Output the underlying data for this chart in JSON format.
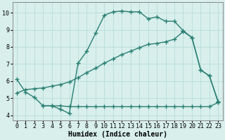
{
  "line1_x": [
    0,
    1,
    2,
    3,
    4,
    5,
    6,
    7,
    8,
    9,
    10,
    11,
    12,
    13,
    14,
    15,
    16,
    17,
    18,
    19,
    20,
    21,
    22,
    23
  ],
  "line1_y": [
    6.1,
    5.35,
    5.05,
    4.55,
    4.55,
    4.35,
    4.1,
    7.05,
    7.75,
    8.8,
    9.85,
    10.05,
    10.1,
    10.05,
    10.05,
    9.65,
    9.75,
    9.5,
    9.5,
    8.95,
    8.55,
    6.65,
    6.3,
    4.75
  ],
  "line2_x": [
    0,
    1,
    2,
    3,
    4,
    5,
    6,
    7,
    8,
    9,
    10,
    11,
    12,
    13,
    14,
    15,
    16,
    17,
    18,
    19,
    20,
    21,
    22,
    23
  ],
  "line2_y": [
    5.3,
    5.5,
    5.55,
    5.6,
    5.7,
    5.8,
    5.95,
    6.2,
    6.5,
    6.75,
    7.05,
    7.3,
    7.55,
    7.75,
    7.95,
    8.15,
    8.2,
    8.3,
    8.45,
    8.9,
    8.55,
    6.65,
    6.3,
    4.8
  ],
  "line3_x": [
    3,
    4,
    5,
    6,
    7,
    8,
    9,
    10,
    11,
    12,
    13,
    14,
    15,
    16,
    17,
    18,
    19,
    20,
    21,
    22,
    23
  ],
  "line3_y": [
    4.55,
    4.55,
    4.55,
    4.5,
    4.5,
    4.5,
    4.5,
    4.5,
    4.5,
    4.5,
    4.5,
    4.5,
    4.5,
    4.5,
    4.5,
    4.5,
    4.5,
    4.5,
    4.5,
    4.5,
    4.75
  ],
  "color": "#2a7f72",
  "bg_color": "#d8efec",
  "grid_color": "#b8ddd9",
  "xlabel": "Humidex (Indice chaleur)",
  "xlim": [
    -0.5,
    23.5
  ],
  "ylim": [
    3.7,
    10.6
  ],
  "xticks": [
    0,
    1,
    2,
    3,
    4,
    5,
    6,
    7,
    8,
    9,
    10,
    11,
    12,
    13,
    14,
    15,
    16,
    17,
    18,
    19,
    20,
    21,
    22,
    23
  ],
  "yticks": [
    4,
    5,
    6,
    7,
    8,
    9,
    10
  ],
  "marker": "+",
  "markersize": 4,
  "linewidth": 1.0,
  "tick_fontsize": 6,
  "xlabel_fontsize": 7
}
